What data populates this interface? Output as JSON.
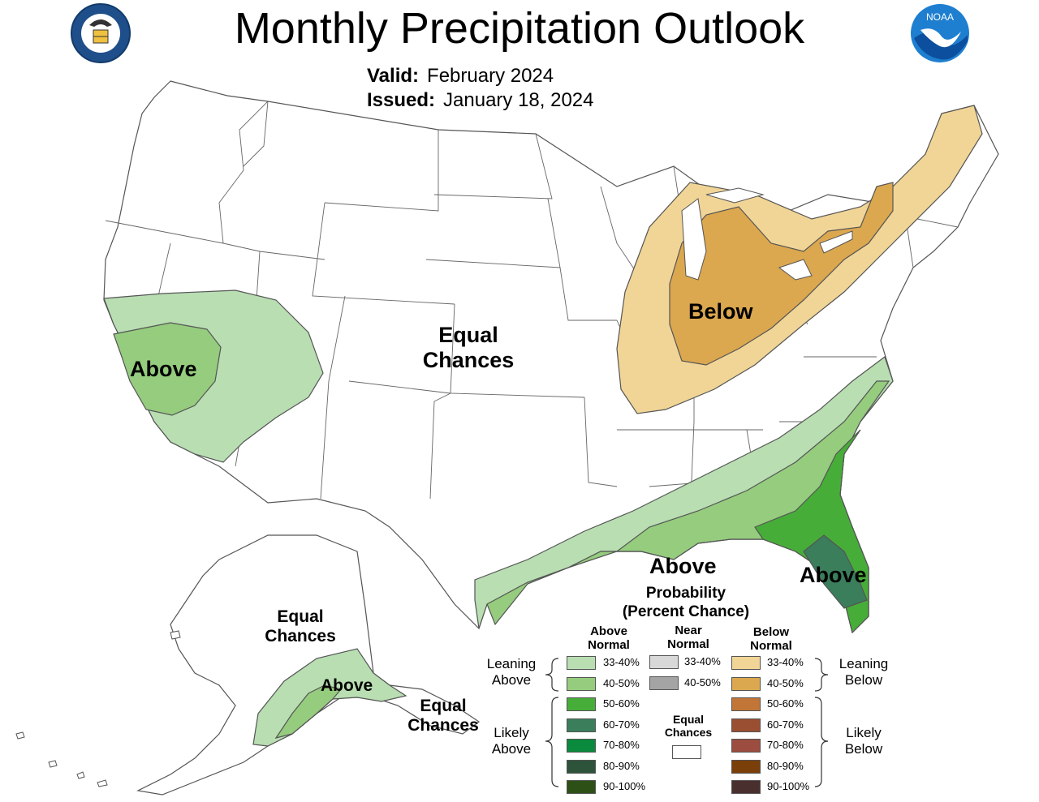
{
  "header": {
    "title": "Monthly Precipitation Outlook",
    "valid_label": "Valid:",
    "valid_value": "February 2024",
    "issued_label": "Issued:",
    "issued_value": "January 18, 2024"
  },
  "logos": {
    "left": "department-of-commerce-seal",
    "right": "noaa-logo",
    "noaa_text": "NOAA"
  },
  "map_labels": {
    "west_above": "Above",
    "central_equal_1": "Equal",
    "central_equal_2": "Chances",
    "great_lakes_below": "Below",
    "gulf_above": "Above",
    "florida_above": "Above",
    "alaska_equal_1": "Equal",
    "alaska_equal_2": "Chances",
    "alaska_above": "Above",
    "alaska_se_equal_1": "Equal",
    "alaska_se_equal_2": "Chances"
  },
  "legend": {
    "title_1": "Probability",
    "title_2": "(Percent Chance)",
    "above_head_1": "Above",
    "above_head_2": "Normal",
    "near_head_1": "Near",
    "near_head_2": "Normal",
    "below_head_1": "Below",
    "below_head_2": "Normal",
    "leaning_above_1": "Leaning",
    "leaning_above_2": "Above",
    "likely_above_1": "Likely",
    "likely_above_2": "Above",
    "leaning_below_1": "Leaning",
    "leaning_below_2": "Below",
    "likely_below_1": "Likely",
    "likely_below_2": "Below",
    "equal_1": "Equal",
    "equal_2": "Chances",
    "above": [
      {
        "label": "33-40%",
        "color": "#b8deb2"
      },
      {
        "label": "40-50%",
        "color": "#95cc7e"
      },
      {
        "label": "50-60%",
        "color": "#47ad39"
      },
      {
        "label": "60-70%",
        "color": "#3a7e5c"
      },
      {
        "label": "70-80%",
        "color": "#0a8a3d"
      },
      {
        "label": "80-90%",
        "color": "#2d533b"
      },
      {
        "label": "90-100%",
        "color": "#2d5016"
      }
    ],
    "near": [
      {
        "label": "33-40%",
        "color": "#d8d8d8"
      },
      {
        "label": "40-50%",
        "color": "#a4a4a4"
      }
    ],
    "below": [
      {
        "label": "33-40%",
        "color": "#f1d596"
      },
      {
        "label": "40-50%",
        "color": "#dba74f"
      },
      {
        "label": "50-60%",
        "color": "#c17638"
      },
      {
        "label": "60-70%",
        "color": "#9a4f33"
      },
      {
        "label": "70-80%",
        "color": "#9c4d40"
      },
      {
        "label": "80-90%",
        "color": "#7b3f0a"
      },
      {
        "label": "90-100%",
        "color": "#4a2f2f"
      }
    ],
    "equal_color": "#ffffff"
  }
}
